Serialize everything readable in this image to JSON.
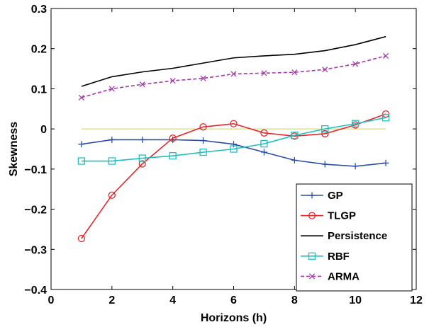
{
  "chart_data": {
    "type": "line",
    "title": "",
    "xlabel": "Horizons (h)",
    "ylabel": "Skewness",
    "xlim": [
      0,
      12
    ],
    "ylim": [
      -0.4,
      0.3
    ],
    "xticks": [
      0,
      2,
      4,
      6,
      8,
      10,
      12
    ],
    "xtick_labels": [
      "0",
      "2",
      "4",
      "6",
      "8",
      "10",
      "12"
    ],
    "yticks": [
      -0.4,
      -0.3,
      -0.2,
      -0.1,
      0,
      0.1,
      0.2,
      0.3
    ],
    "ytick_labels": [
      "−0.4",
      "−0.3",
      "−0.2",
      "−0.1",
      "0",
      "0.1",
      "0.2",
      "0.3"
    ],
    "grid": false,
    "legend_position": "bottom-right",
    "reference_line": {
      "y": 0,
      "color": "#c8d46a"
    },
    "x": [
      1,
      2,
      3,
      4,
      5,
      6,
      7,
      8,
      9,
      10,
      11
    ],
    "series": [
      {
        "name": "GP",
        "color": "#2b4ea2",
        "marker": "plus",
        "dash": "solid",
        "values": [
          -0.038,
          -0.027,
          -0.027,
          -0.027,
          -0.029,
          -0.038,
          -0.058,
          -0.078,
          -0.088,
          -0.093,
          -0.085
        ]
      },
      {
        "name": "TLGP",
        "color": "#e8262a",
        "marker": "circle",
        "dash": "solid",
        "values": [
          -0.273,
          -0.165,
          -0.087,
          -0.023,
          0.005,
          0.013,
          -0.01,
          -0.018,
          -0.012,
          0.01,
          0.037
        ]
      },
      {
        "name": "Persistence",
        "color": "#000000",
        "marker": "none",
        "dash": "solid",
        "values": [
          0.106,
          0.13,
          0.142,
          0.151,
          0.164,
          0.177,
          0.182,
          0.186,
          0.195,
          0.21,
          0.23
        ]
      },
      {
        "name": "RBF",
        "color": "#1fbfbf",
        "marker": "square",
        "dash": "solid",
        "values": [
          -0.08,
          -0.08,
          -0.073,
          -0.067,
          -0.058,
          -0.05,
          -0.037,
          -0.016,
          0.0,
          0.013,
          0.028
        ]
      },
      {
        "name": "ARMA",
        "color": "#a33aa8",
        "marker": "x",
        "dash": "dashed",
        "values": [
          0.078,
          0.1,
          0.111,
          0.12,
          0.126,
          0.137,
          0.139,
          0.141,
          0.148,
          0.162,
          0.182
        ]
      }
    ]
  }
}
